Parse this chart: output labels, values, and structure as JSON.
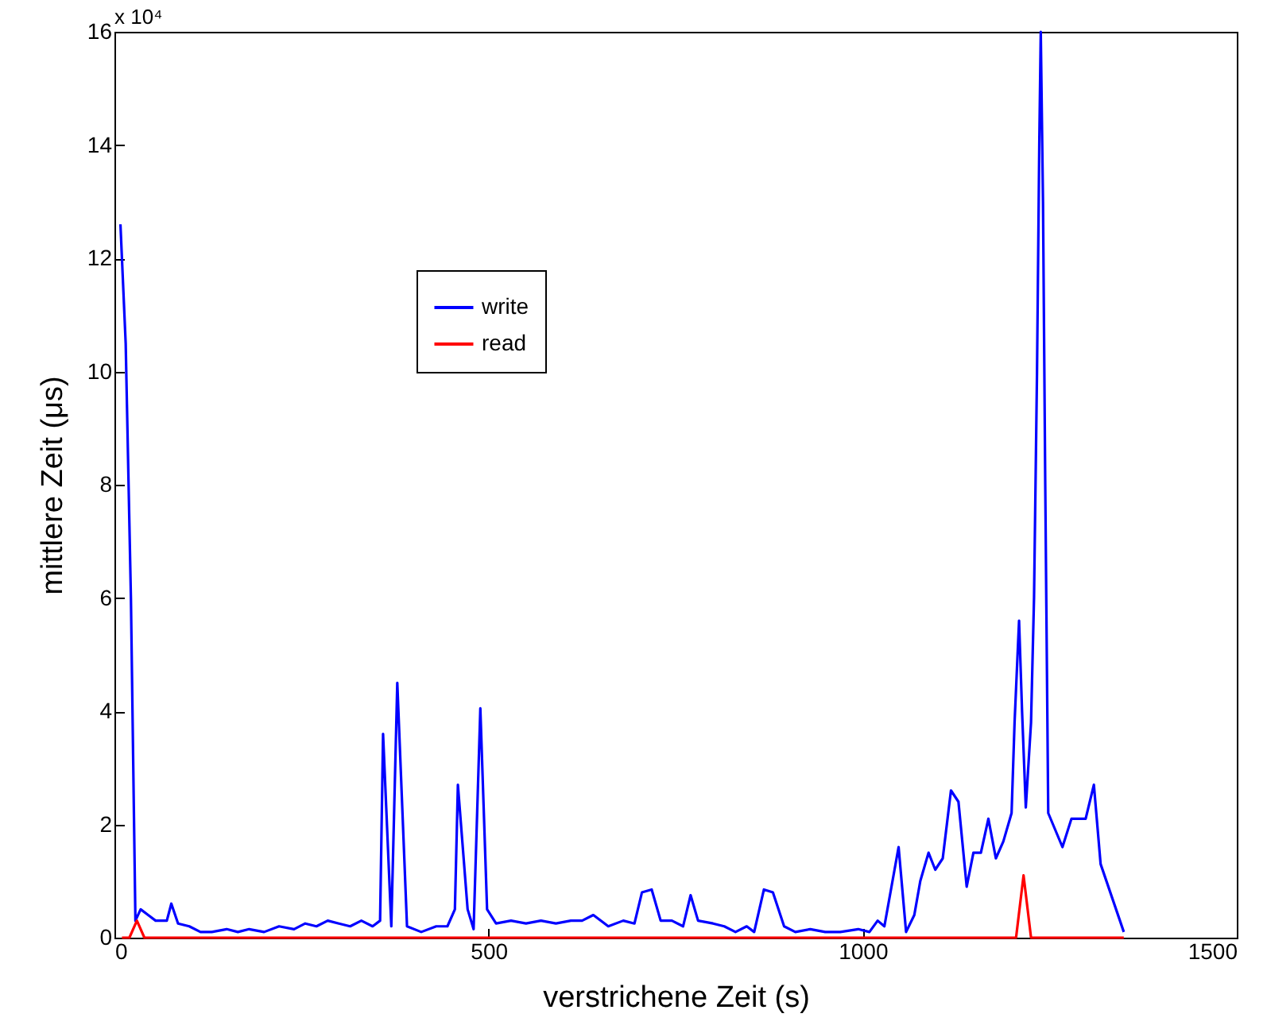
{
  "chart_data": {
    "type": "line",
    "xlabel": "verstrichene Zeit (s)",
    "ylabel": "mittlere Zeit (μs)",
    "annotations": [
      "x 10⁴"
    ],
    "xlim": [
      0,
      1500
    ],
    "xticks": [
      0,
      500,
      1000,
      1500
    ],
    "ylim": [
      0,
      16
    ],
    "yticks": [
      0,
      2,
      4,
      6,
      8,
      10,
      12,
      14,
      16
    ],
    "grid": false,
    "legend": "top left",
    "series": [
      {
        "name": "write",
        "color": "#0000ff",
        "x": [
          8,
          15,
          22,
          28,
          35,
          45,
          55,
          70,
          76,
          85,
          100,
          115,
          130,
          150,
          165,
          180,
          200,
          220,
          240,
          255,
          270,
          285,
          300,
          315,
          330,
          345,
          355,
          359,
          370,
          378,
          391,
          410,
          430,
          445,
          455,
          459,
          472,
          480,
          489,
          498,
          510,
          530,
          550,
          570,
          590,
          610,
          625,
          640,
          660,
          680,
          695,
          705,
          718,
          730,
          745,
          760,
          770,
          780,
          800,
          815,
          830,
          845,
          855,
          868,
          880,
          895,
          910,
          930,
          950,
          970,
          994,
          1009,
          1020,
          1029,
          1048,
          1058,
          1069,
          1077,
          1088,
          1097,
          1107,
          1118,
          1128,
          1139,
          1148,
          1158,
          1168,
          1178,
          1188,
          1199,
          1203,
          1209,
          1213,
          1218,
          1225,
          1229,
          1233,
          1236,
          1238,
          1241,
          1244,
          1248,
          1267,
          1279,
          1298,
          1309,
          1318,
          1349
        ],
        "values": [
          12.6,
          10.5,
          6,
          0.3,
          0.5,
          0.4,
          0.3,
          0.3,
          0.6,
          0.25,
          0.2,
          0.1,
          0.1,
          0.15,
          0.1,
          0.15,
          0.1,
          0.2,
          0.15,
          0.25,
          0.2,
          0.3,
          0.25,
          0.2,
          0.3,
          0.2,
          0.3,
          3.6,
          0.2,
          4.5,
          0.2,
          0.1,
          0.2,
          0.2,
          0.5,
          2.7,
          0.5,
          0.15,
          4.05,
          0.5,
          0.25,
          0.3,
          0.25,
          0.3,
          0.25,
          0.3,
          0.3,
          0.4,
          0.2,
          0.3,
          0.25,
          0.8,
          0.85,
          0.3,
          0.3,
          0.2,
          0.75,
          0.3,
          0.25,
          0.2,
          0.1,
          0.2,
          0.1,
          0.85,
          0.8,
          0.2,
          0.1,
          0.15,
          0.1,
          0.1,
          0.15,
          0.1,
          0.3,
          0.2,
          1.6,
          0.1,
          0.4,
          1.0,
          1.5,
          1.2,
          1.4,
          2.6,
          2.4,
          0.9,
          1.5,
          1.5,
          2.1,
          1.4,
          1.7,
          2.2,
          3.8,
          5.6,
          4.0,
          2.3,
          3.8,
          6,
          10,
          14,
          16,
          13,
          8,
          2.2,
          1.6,
          2.1,
          2.1,
          2.7,
          1.3,
          0.1
        ]
      },
      {
        "name": "read",
        "color": "#ff0000",
        "x": [
          10,
          20,
          30,
          40,
          400,
          1205,
          1215,
          1225,
          1349
        ],
        "values": [
          0,
          0,
          0.3,
          0,
          0,
          0,
          1.1,
          0,
          0
        ]
      }
    ]
  }
}
